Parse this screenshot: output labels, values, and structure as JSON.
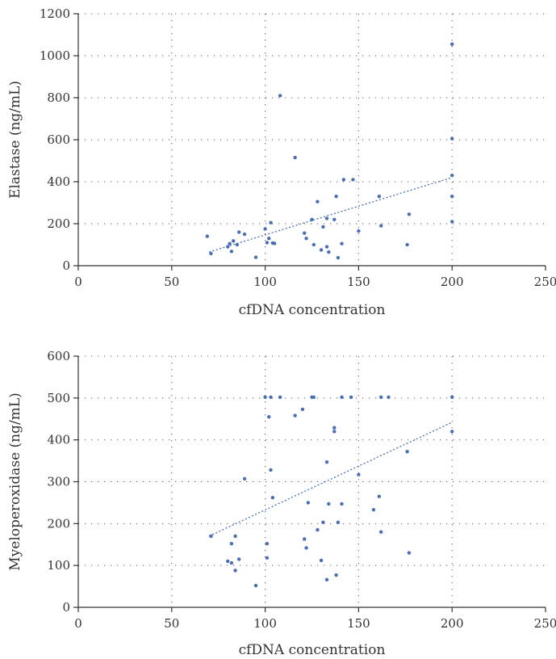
{
  "chart_data": [
    {
      "type": "scatter",
      "xlabel": "cfDNA concentration",
      "ylabel": "Elastase (ng/mL)",
      "xlim": [
        0,
        250
      ],
      "ylim": [
        0,
        1200
      ],
      "x_ticks": [
        0,
        50,
        100,
        150,
        200,
        250
      ],
      "y_ticks": [
        0,
        200,
        400,
        600,
        800,
        1000,
        1200
      ],
      "grid": "dotted",
      "trendline": {
        "style": "dotted",
        "x": [
          70,
          200
        ],
        "y": [
          65,
          420
        ]
      },
      "points": [
        {
          "x": 69,
          "y": 140
        },
        {
          "x": 71,
          "y": 58
        },
        {
          "x": 80,
          "y": 90
        },
        {
          "x": 81,
          "y": 105
        },
        {
          "x": 82,
          "y": 68
        },
        {
          "x": 83,
          "y": 118
        },
        {
          "x": 85,
          "y": 100
        },
        {
          "x": 86,
          "y": 160
        },
        {
          "x": 89,
          "y": 150
        },
        {
          "x": 95,
          "y": 40
        },
        {
          "x": 100,
          "y": 175
        },
        {
          "x": 101,
          "y": 110
        },
        {
          "x": 102,
          "y": 130
        },
        {
          "x": 103,
          "y": 205
        },
        {
          "x": 104,
          "y": 108
        },
        {
          "x": 105,
          "y": 106
        },
        {
          "x": 108,
          "y": 810
        },
        {
          "x": 116,
          "y": 515
        },
        {
          "x": 121,
          "y": 155
        },
        {
          "x": 122,
          "y": 130
        },
        {
          "x": 125,
          "y": 220
        },
        {
          "x": 126,
          "y": 100
        },
        {
          "x": 128,
          "y": 305
        },
        {
          "x": 130,
          "y": 75
        },
        {
          "x": 131,
          "y": 185
        },
        {
          "x": 133,
          "y": 225
        },
        {
          "x": 133,
          "y": 90
        },
        {
          "x": 134,
          "y": 65
        },
        {
          "x": 137,
          "y": 220
        },
        {
          "x": 138,
          "y": 330
        },
        {
          "x": 139,
          "y": 38
        },
        {
          "x": 141,
          "y": 105
        },
        {
          "x": 142,
          "y": 410
        },
        {
          "x": 147,
          "y": 410
        },
        {
          "x": 150,
          "y": 165
        },
        {
          "x": 161,
          "y": 330
        },
        {
          "x": 162,
          "y": 190
        },
        {
          "x": 176,
          "y": 100
        },
        {
          "x": 177,
          "y": 245
        },
        {
          "x": 200,
          "y": 1055
        },
        {
          "x": 200,
          "y": 605
        },
        {
          "x": 200,
          "y": 430
        },
        {
          "x": 200,
          "y": 330
        },
        {
          "x": 200,
          "y": 210
        }
      ]
    },
    {
      "type": "scatter",
      "xlabel": "cfDNA concentration",
      "ylabel": "Myeloperoxidase (ng/mL)",
      "xlim": [
        0,
        250
      ],
      "ylim": [
        0,
        600
      ],
      "x_ticks": [
        0,
        50,
        100,
        150,
        200,
        250
      ],
      "y_ticks": [
        0,
        100,
        200,
        300,
        400,
        500,
        600
      ],
      "grid": "dotted",
      "trendline": {
        "style": "dotted",
        "x": [
          70,
          200
        ],
        "y": [
          170,
          442
        ]
      },
      "points": [
        {
          "x": 71,
          "y": 170
        },
        {
          "x": 80,
          "y": 110
        },
        {
          "x": 82,
          "y": 106
        },
        {
          "x": 82,
          "y": 152
        },
        {
          "x": 84,
          "y": 88
        },
        {
          "x": 84,
          "y": 170
        },
        {
          "x": 86,
          "y": 115
        },
        {
          "x": 89,
          "y": 307
        },
        {
          "x": 95,
          "y": 52
        },
        {
          "x": 100,
          "y": 502
        },
        {
          "x": 101,
          "y": 118
        },
        {
          "x": 101,
          "y": 152
        },
        {
          "x": 102,
          "y": 455
        },
        {
          "x": 103,
          "y": 502
        },
        {
          "x": 103,
          "y": 328
        },
        {
          "x": 104,
          "y": 262
        },
        {
          "x": 108,
          "y": 502
        },
        {
          "x": 116,
          "y": 458
        },
        {
          "x": 120,
          "y": 473
        },
        {
          "x": 121,
          "y": 163
        },
        {
          "x": 122,
          "y": 142
        },
        {
          "x": 123,
          "y": 250
        },
        {
          "x": 125,
          "y": 502
        },
        {
          "x": 126,
          "y": 502
        },
        {
          "x": 128,
          "y": 185
        },
        {
          "x": 130,
          "y": 112
        },
        {
          "x": 131,
          "y": 203
        },
        {
          "x": 133,
          "y": 347
        },
        {
          "x": 133,
          "y": 66
        },
        {
          "x": 134,
          "y": 247
        },
        {
          "x": 137,
          "y": 429
        },
        {
          "x": 137,
          "y": 420
        },
        {
          "x": 138,
          "y": 77
        },
        {
          "x": 139,
          "y": 203
        },
        {
          "x": 141,
          "y": 247
        },
        {
          "x": 141,
          "y": 502
        },
        {
          "x": 146,
          "y": 502
        },
        {
          "x": 150,
          "y": 317
        },
        {
          "x": 158,
          "y": 233
        },
        {
          "x": 161,
          "y": 265
        },
        {
          "x": 162,
          "y": 502
        },
        {
          "x": 162,
          "y": 180
        },
        {
          "x": 166,
          "y": 502
        },
        {
          "x": 176,
          "y": 372
        },
        {
          "x": 177,
          "y": 130
        },
        {
          "x": 200,
          "y": 502
        },
        {
          "x": 200,
          "y": 420
        }
      ]
    }
  ],
  "colors": {
    "point": "#4a6fb5",
    "trendline": "#4a6fb5",
    "grid": "#555555",
    "axis": "#333333",
    "text": "#333333"
  }
}
